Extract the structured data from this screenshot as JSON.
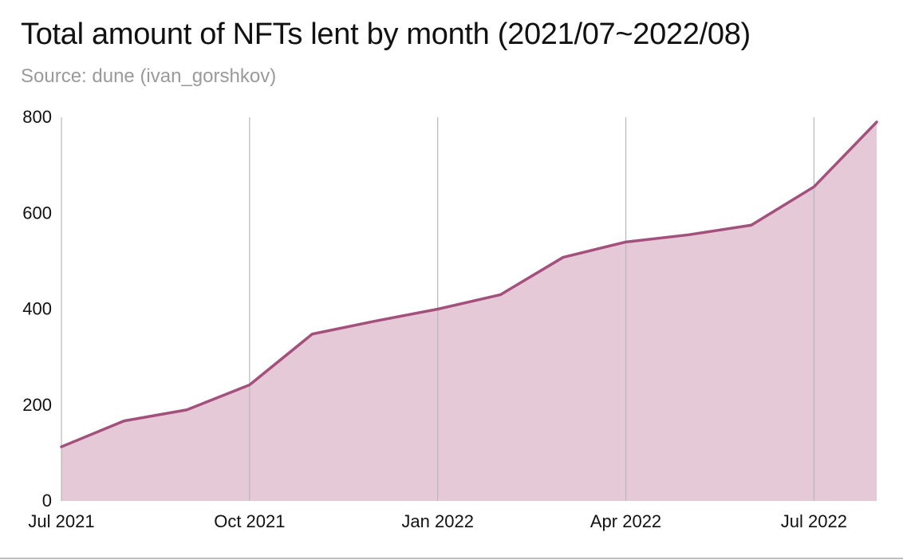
{
  "title": "Total amount of NFTs lent by month (2021/07~2022/08)",
  "subtitle": "Source: dune (ivan_gorshkov)",
  "colors": {
    "line": "#a3507c",
    "fill": "#e5c9d7",
    "grid": "#b8b8b8",
    "text": "#111111",
    "subtitle": "#9a9a9a"
  },
  "chart_data": {
    "type": "area",
    "title": "Total amount of NFTs lent by month (2021/07~2022/08)",
    "subtitle": "Source: dune (ivan_gorshkov)",
    "x": [
      "2021-07",
      "2021-08",
      "2021-09",
      "2021-10",
      "2021-11",
      "2021-12",
      "2022-01",
      "2022-02",
      "2022-03",
      "2022-04",
      "2022-05",
      "2022-06",
      "2022-07",
      "2022-08"
    ],
    "values": [
      113,
      167,
      190,
      242,
      348,
      375,
      400,
      430,
      508,
      540,
      555,
      575,
      655,
      790
    ],
    "x_tick_labels": [
      {
        "x": "2021-07",
        "label": "Jul 2021"
      },
      {
        "x": "2021-10",
        "label": "Oct 2021"
      },
      {
        "x": "2022-01",
        "label": "Jan 2022"
      },
      {
        "x": "2022-04",
        "label": "Apr 2022"
      },
      {
        "x": "2022-07",
        "label": "Jul 2022"
      }
    ],
    "y_ticks": [
      0,
      200,
      400,
      600,
      800
    ],
    "ylim": [
      0,
      800
    ],
    "xlabel": "",
    "ylabel": "",
    "grid": "vertical",
    "legend": "none"
  }
}
